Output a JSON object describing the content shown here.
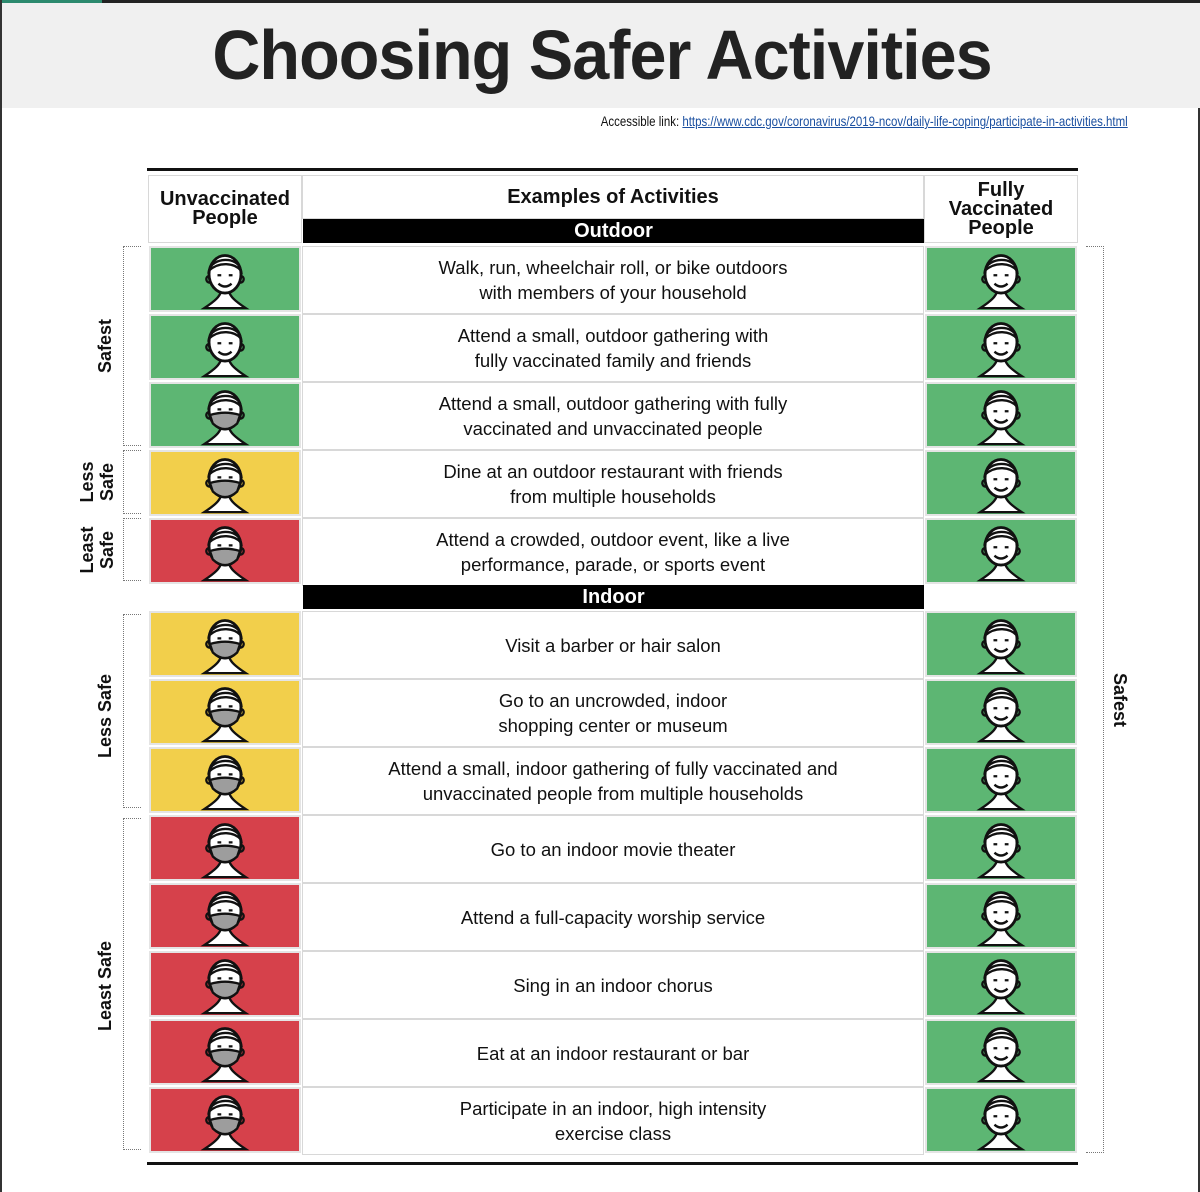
{
  "title": "Choosing Safer Activities",
  "accessible_link": {
    "label": "Accessible link:",
    "url": "https://www.cdc.gov/coronavirus/2019-ncov/daily-life-coping/participate-in-activities.html"
  },
  "columns": {
    "unvaccinated": "Unvaccinated People",
    "activities": "Examples of Activities",
    "vaccinated": "Fully Vaccinated People"
  },
  "colors": {
    "safest": "#5db673",
    "less_safe": "#f2cf4b",
    "least_safe": "#d6414b"
  },
  "sections": [
    {
      "label": "Outdoor",
      "rows": [
        {
          "text": "Walk, run, wheelchair roll, or bike outdoors\nwith members of your household",
          "unvax": "safest",
          "unvax_mask": false,
          "vax": "safest",
          "vax_mask": false
        },
        {
          "text": "Attend a small, outdoor gathering with\nfully vaccinated family and friends",
          "unvax": "safest",
          "unvax_mask": false,
          "vax": "safest",
          "vax_mask": false
        },
        {
          "text": "Attend a small, outdoor gathering with fully\nvaccinated and unvaccinated people",
          "unvax": "safest",
          "unvax_mask": true,
          "vax": "safest",
          "vax_mask": false
        },
        {
          "text": "Dine at an outdoor restaurant with friends\nfrom multiple households",
          "unvax": "less_safe",
          "unvax_mask": true,
          "vax": "safest",
          "vax_mask": false
        },
        {
          "text": "Attend a crowded, outdoor event, like a live\nperformance, parade, or sports event",
          "unvax": "least_safe",
          "unvax_mask": true,
          "vax": "safest",
          "vax_mask": false
        }
      ]
    },
    {
      "label": "Indoor",
      "rows": [
        {
          "text": "Visit a barber or hair salon",
          "unvax": "less_safe",
          "unvax_mask": true,
          "vax": "safest",
          "vax_mask": false
        },
        {
          "text": "Go to an uncrowded, indoor\nshopping center or museum",
          "unvax": "less_safe",
          "unvax_mask": true,
          "vax": "safest",
          "vax_mask": false
        },
        {
          "text": "Attend a small, indoor gathering of fully vaccinated and\nunvaccinated people from multiple households",
          "unvax": "less_safe",
          "unvax_mask": true,
          "vax": "safest",
          "vax_mask": false
        },
        {
          "text": "Go to an indoor movie theater",
          "unvax": "least_safe",
          "unvax_mask": true,
          "vax": "safest",
          "vax_mask": false
        },
        {
          "text": "Attend a full-capacity worship service",
          "unvax": "least_safe",
          "unvax_mask": true,
          "vax": "safest",
          "vax_mask": false
        },
        {
          "text": "Sing in an indoor chorus",
          "unvax": "least_safe",
          "unvax_mask": true,
          "vax": "safest",
          "vax_mask": false
        },
        {
          "text": "Eat at an indoor restaurant or bar",
          "unvax": "least_safe",
          "unvax_mask": true,
          "vax": "safest",
          "vax_mask": false
        },
        {
          "text": "Participate in an indoor, high intensity\nexercise class",
          "unvax": "least_safe",
          "unvax_mask": true,
          "vax": "safest",
          "vax_mask": false
        }
      ]
    }
  ],
  "side_labels": {
    "left": [
      {
        "text": "Safest",
        "lines": [
          "Safest"
        ]
      },
      {
        "text": "Less Safe",
        "lines": [
          "Less",
          "Safe"
        ]
      },
      {
        "text": "Least Safe",
        "lines": [
          "Least",
          "Safe"
        ]
      },
      {
        "text": "Less Safe",
        "lines": [
          "Less Safe"
        ]
      },
      {
        "text": "Least Safe",
        "lines": [
          "Least Safe"
        ]
      }
    ],
    "right": "Safest"
  }
}
